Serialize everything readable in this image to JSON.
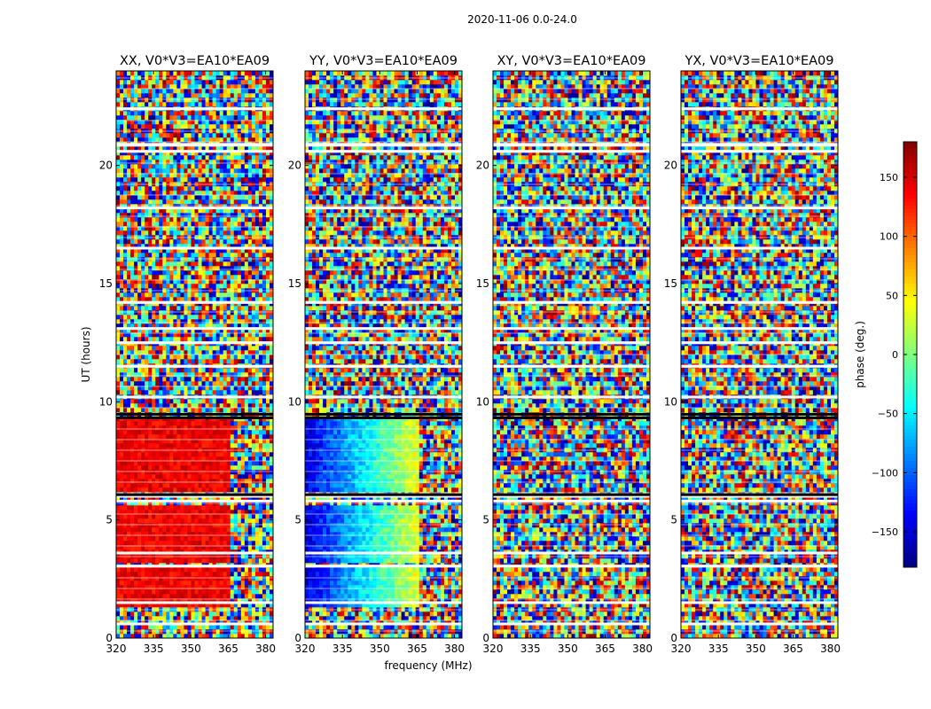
{
  "suptitle": "2020-11-06 0.0-24.0",
  "chart_data": [
    {
      "type": "heatmap",
      "title": "XX, V0*V3=EA10*EA09",
      "xlabel": "",
      "ylabel": "UT (hours)",
      "xlim": [
        320,
        383
      ],
      "ylim": [
        0,
        24
      ],
      "xticks": [
        "320",
        "335",
        "350",
        "365",
        "380"
      ],
      "yticks": [
        "0",
        "5",
        "10",
        "15",
        "20"
      ],
      "coherent_phase_deg": 140,
      "coherent_bands": [
        [
          1.3,
          3.0
        ],
        [
          3.2,
          5.7
        ],
        [
          6.1,
          9.3
        ]
      ]
    },
    {
      "type": "heatmap",
      "title": "YY, V0*V3=EA10*EA09",
      "xlabel": "frequency (MHz)",
      "ylabel": "",
      "xlim": [
        320,
        383
      ],
      "ylim": [
        0,
        24
      ],
      "xticks": [
        "320",
        "335",
        "350",
        "365",
        "380"
      ],
      "yticks": [
        "0",
        "5",
        "10",
        "15",
        "20"
      ],
      "coherent_phase_deg": "gradient -140 to 60",
      "coherent_bands": [
        [
          1.3,
          3.0
        ],
        [
          3.2,
          5.7
        ],
        [
          6.1,
          9.3
        ]
      ]
    },
    {
      "type": "heatmap",
      "title": "XY, V0*V3=EA10*EA09",
      "xlabel": "",
      "ylabel": "",
      "xlim": [
        320,
        383
      ],
      "ylim": [
        0,
        24
      ],
      "xticks": [
        "320",
        "335",
        "350",
        "365",
        "380"
      ],
      "yticks": [
        "0",
        "5",
        "10",
        "15",
        "20"
      ],
      "coherent_phase_deg": null,
      "coherent_bands": []
    },
    {
      "type": "heatmap",
      "title": "YX, V0*V3=EA10*EA09",
      "xlabel": "",
      "ylabel": "",
      "xlim": [
        320,
        383
      ],
      "ylim": [
        0,
        24
      ],
      "xticks": [
        "320",
        "335",
        "350",
        "365",
        "380"
      ],
      "yticks": [
        "0",
        "5",
        "10",
        "15",
        "20"
      ],
      "coherent_phase_deg": null,
      "coherent_bands": []
    }
  ],
  "colorbar": {
    "label": "phase (deg.)",
    "range": [
      -180,
      180
    ],
    "ticks": [
      "150",
      "100",
      "50",
      "0",
      "−50",
      "−100",
      "−150"
    ],
    "tick_values": [
      150,
      100,
      50,
      0,
      -50,
      -100,
      -150
    ],
    "colormap": "jet"
  },
  "colors": {
    "cmap": [
      "#000080",
      "#0000ff",
      "#0080ff",
      "#00ffff",
      "#80ff80",
      "#ffff00",
      "#ff8000",
      "#ff0000",
      "#800000"
    ],
    "gap": "#ffffff",
    "flag": "#000000"
  }
}
